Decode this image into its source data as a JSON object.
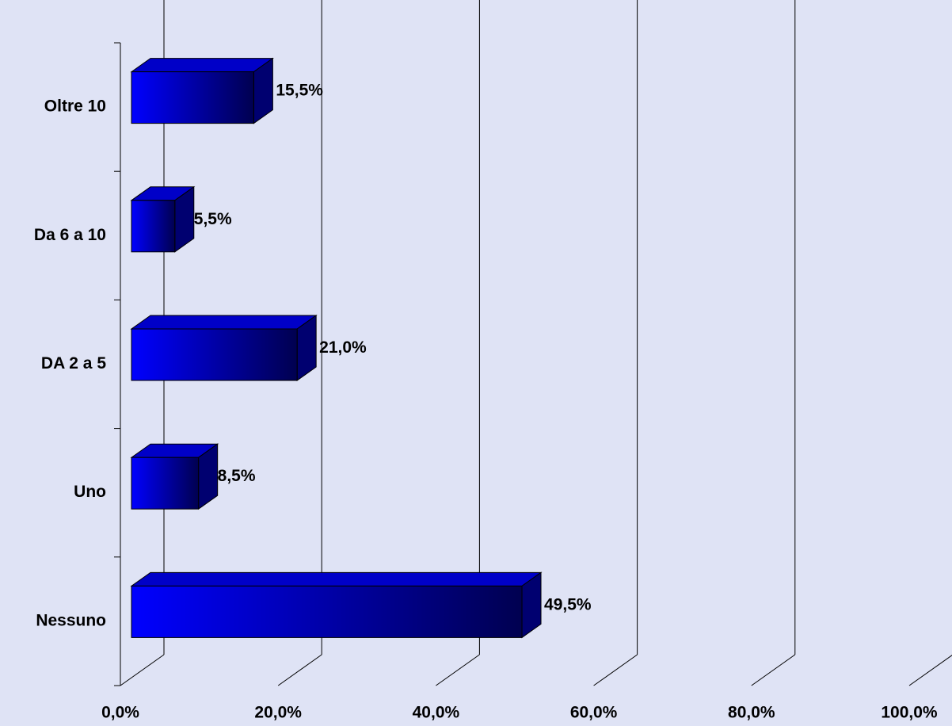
{
  "chart_data": {
    "type": "bar3d_horizontal",
    "categories": [
      "Oltre 10",
      "Da 6 a 10",
      "DA 2 a 5",
      "Uno",
      "Nessuno"
    ],
    "values": [
      15.5,
      5.5,
      21.0,
      8.5,
      49.5
    ],
    "value_labels": [
      "15,5%",
      "5,5%",
      "21,0%",
      "8,5%",
      "49,5%"
    ],
    "color": "#0000ff",
    "xlim": [
      0,
      100
    ],
    "xticks": [
      {
        "value": 0,
        "label": "0,0%"
      },
      {
        "value": 20,
        "label": "20,0%"
      },
      {
        "value": 40,
        "label": "40,0%"
      },
      {
        "value": 60,
        "label": "60,0%"
      },
      {
        "value": 80,
        "label": "80,0%"
      },
      {
        "value": 100,
        "label": "100,0%"
      }
    ],
    "grid": true
  }
}
